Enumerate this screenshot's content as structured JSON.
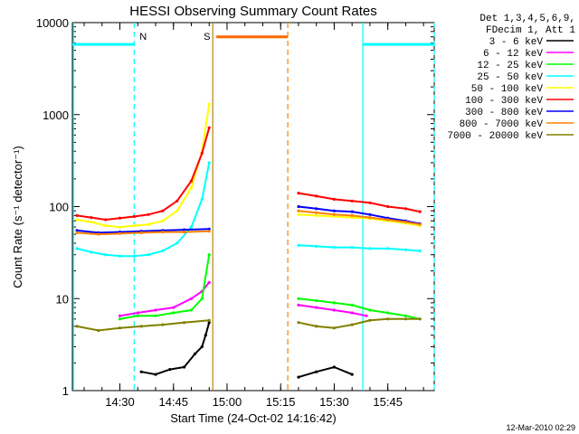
{
  "chart_data": {
    "type": "line",
    "title": "HESSI Observing Summary Count Rates",
    "xlabel": "Start Time (24-Oct-02 14:16:42)",
    "ylabel": "Count Rate (s⁻¹ detector⁻¹)",
    "y_scale": "log",
    "ylim": [
      1,
      10000
    ],
    "xlim": [
      "14:16:42",
      "15:58:00"
    ],
    "x_ticks": [
      "14:30",
      "14:45",
      "15:00",
      "15:15",
      "15:30",
      "15:45"
    ],
    "y_ticks": [
      "1",
      "10",
      "100",
      "1000",
      "10000"
    ],
    "legend_header": [
      "Det 1,3,4,5,6,9,",
      "FDecim 1, Att 1"
    ],
    "legend_position": "outside-right",
    "footer_date": "12-Mar-2010 02:29",
    "annotations": [
      {
        "text": "N",
        "time": "14:34",
        "color": "#00e0e0"
      },
      {
        "text": "S",
        "time": "14:57",
        "color": "#ff8000"
      }
    ],
    "series": [
      {
        "name": "3 - 6 keV",
        "color": "#000000",
        "points": [
          [
            "14:36",
            1.6
          ],
          [
            "14:40",
            1.5
          ],
          [
            "14:44",
            1.7
          ],
          [
            "14:48",
            1.8
          ],
          [
            "14:51",
            2.5
          ],
          [
            "14:53",
            3
          ],
          [
            "14:54",
            4
          ],
          [
            "14:55",
            5.5
          ],
          [
            "15:20",
            1.4
          ],
          [
            "15:25",
            1.6
          ],
          [
            "15:30",
            1.8
          ],
          [
            "15:35",
            1.5
          ]
        ]
      },
      {
        "name": "6 - 12 keV",
        "color": "#ff00ff",
        "points": [
          [
            "14:30",
            6.5
          ],
          [
            "14:35",
            7
          ],
          [
            "14:40",
            7.5
          ],
          [
            "14:45",
            8
          ],
          [
            "14:50",
            10
          ],
          [
            "14:53",
            12
          ],
          [
            "14:55",
            15
          ],
          [
            "15:20",
            8.5
          ],
          [
            "15:25",
            8
          ],
          [
            "15:30",
            7.5
          ],
          [
            "15:35",
            7
          ],
          [
            "15:39",
            6.5
          ]
        ]
      },
      {
        "name": "12 - 25 keV",
        "color": "#00ff00",
        "points": [
          [
            "14:30",
            6
          ],
          [
            "14:35",
            6.5
          ],
          [
            "14:40",
            6.5
          ],
          [
            "14:45",
            7
          ],
          [
            "14:50",
            7.5
          ],
          [
            "14:53",
            10
          ],
          [
            "14:55",
            30
          ],
          [
            "15:20",
            10
          ],
          [
            "15:25",
            9.5
          ],
          [
            "15:30",
            9
          ],
          [
            "15:35",
            8.5
          ],
          [
            "15:40",
            7.5
          ],
          [
            "15:45",
            7
          ],
          [
            "15:50",
            6.5
          ],
          [
            "15:54",
            6
          ]
        ]
      },
      {
        "name": "25 - 50 keV",
        "color": "#00ffff",
        "points": [
          [
            "14:18",
            35
          ],
          [
            "14:22",
            32
          ],
          [
            "14:26",
            30
          ],
          [
            "14:30",
            29
          ],
          [
            "14:34",
            29
          ],
          [
            "14:38",
            30
          ],
          [
            "14:42",
            33
          ],
          [
            "14:46",
            40
          ],
          [
            "14:50",
            60
          ],
          [
            "14:53",
            120
          ],
          [
            "14:55",
            300
          ],
          [
            "15:20",
            38
          ],
          [
            "15:25",
            37
          ],
          [
            "15:30",
            36
          ],
          [
            "15:35",
            36
          ],
          [
            "15:40",
            35
          ],
          [
            "15:45",
            35
          ],
          [
            "15:50",
            34
          ],
          [
            "15:54",
            33
          ]
        ]
      },
      {
        "name": "50 - 100 keV",
        "color": "#ffff00",
        "points": [
          [
            "14:18",
            72
          ],
          [
            "14:22",
            68
          ],
          [
            "14:26",
            62
          ],
          [
            "14:30",
            60
          ],
          [
            "14:34",
            62
          ],
          [
            "14:38",
            64
          ],
          [
            "14:42",
            70
          ],
          [
            "14:46",
            90
          ],
          [
            "14:50",
            160
          ],
          [
            "14:53",
            400
          ],
          [
            "14:55",
            1300
          ],
          [
            "15:20",
            82
          ],
          [
            "15:25",
            80
          ],
          [
            "15:30",
            78
          ],
          [
            "15:35",
            76
          ],
          [
            "15:40",
            74
          ],
          [
            "15:45",
            70
          ],
          [
            "15:50",
            66
          ],
          [
            "15:54",
            62
          ]
        ]
      },
      {
        "name": "100 - 300 keV",
        "color": "#ff0000",
        "points": [
          [
            "14:18",
            80
          ],
          [
            "14:22",
            76
          ],
          [
            "14:26",
            72
          ],
          [
            "14:30",
            75
          ],
          [
            "14:34",
            78
          ],
          [
            "14:38",
            82
          ],
          [
            "14:42",
            90
          ],
          [
            "14:46",
            115
          ],
          [
            "14:50",
            190
          ],
          [
            "14:53",
            380
          ],
          [
            "14:55",
            720
          ],
          [
            "15:20",
            140
          ],
          [
            "15:25",
            130
          ],
          [
            "15:30",
            120
          ],
          [
            "15:35",
            115
          ],
          [
            "15:40",
            110
          ],
          [
            "15:45",
            100
          ],
          [
            "15:50",
            95
          ],
          [
            "15:54",
            88
          ]
        ]
      },
      {
        "name": "300 - 800 keV",
        "color": "#0000ff",
        "points": [
          [
            "14:18",
            55
          ],
          [
            "14:24",
            52
          ],
          [
            "14:30",
            53
          ],
          [
            "14:36",
            54
          ],
          [
            "14:42",
            55
          ],
          [
            "14:48",
            56
          ],
          [
            "14:55",
            57
          ],
          [
            "15:20",
            100
          ],
          [
            "15:25",
            95
          ],
          [
            "15:30",
            90
          ],
          [
            "15:35",
            88
          ],
          [
            "15:40",
            82
          ],
          [
            "15:45",
            75
          ],
          [
            "15:50",
            70
          ],
          [
            "15:54",
            65
          ]
        ]
      },
      {
        "name": "800 - 7000 keV",
        "color": "#ff8000",
        "points": [
          [
            "14:18",
            52
          ],
          [
            "14:24",
            50
          ],
          [
            "14:30",
            51
          ],
          [
            "14:36",
            52
          ],
          [
            "14:42",
            53
          ],
          [
            "14:48",
            53
          ],
          [
            "14:55",
            54
          ],
          [
            "15:20",
            90
          ],
          [
            "15:25",
            86
          ],
          [
            "15:30",
            82
          ],
          [
            "15:35",
            80
          ],
          [
            "15:40",
            76
          ],
          [
            "15:45",
            72
          ],
          [
            "15:50",
            68
          ],
          [
            "15:54",
            64
          ]
        ]
      },
      {
        "name": "7000 - 20000 keV",
        "color": "#808000",
        "points": [
          [
            "14:18",
            5
          ],
          [
            "14:24",
            4.5
          ],
          [
            "14:30",
            4.8
          ],
          [
            "14:36",
            5
          ],
          [
            "14:42",
            5.2
          ],
          [
            "14:48",
            5.5
          ],
          [
            "14:55",
            5.8
          ],
          [
            "15:20",
            5.5
          ],
          [
            "15:25",
            5
          ],
          [
            "15:30",
            4.8
          ],
          [
            "15:35",
            5.2
          ],
          [
            "15:40",
            5.8
          ],
          [
            "15:45",
            6
          ],
          [
            "15:50",
            6
          ],
          [
            "15:54",
            6
          ]
        ]
      }
    ],
    "bands": [
      {
        "color": "#00ffff",
        "from": "14:16:42",
        "to": "14:34",
        "y": 5800
      },
      {
        "color": "#00ffff",
        "from": "15:38",
        "to": "15:58",
        "y": 5800
      },
      {
        "color": "#ff6600",
        "from": "14:57",
        "to": "15:17",
        "y": 7000
      }
    ],
    "vertical_markers": [
      {
        "time": "14:17",
        "color": "#00ffff",
        "style": "solid"
      },
      {
        "time": "14:34",
        "color": "#00ffff",
        "style": "dashed"
      },
      {
        "time": "14:56",
        "color": "#b8860b",
        "style": "solid"
      },
      {
        "time": "15:17",
        "color": "#ff8000",
        "style": "dashed"
      },
      {
        "time": "15:38",
        "color": "#00ffff",
        "style": "solid"
      },
      {
        "time": "15:58",
        "color": "#00ffff",
        "style": "dashed"
      }
    ]
  }
}
